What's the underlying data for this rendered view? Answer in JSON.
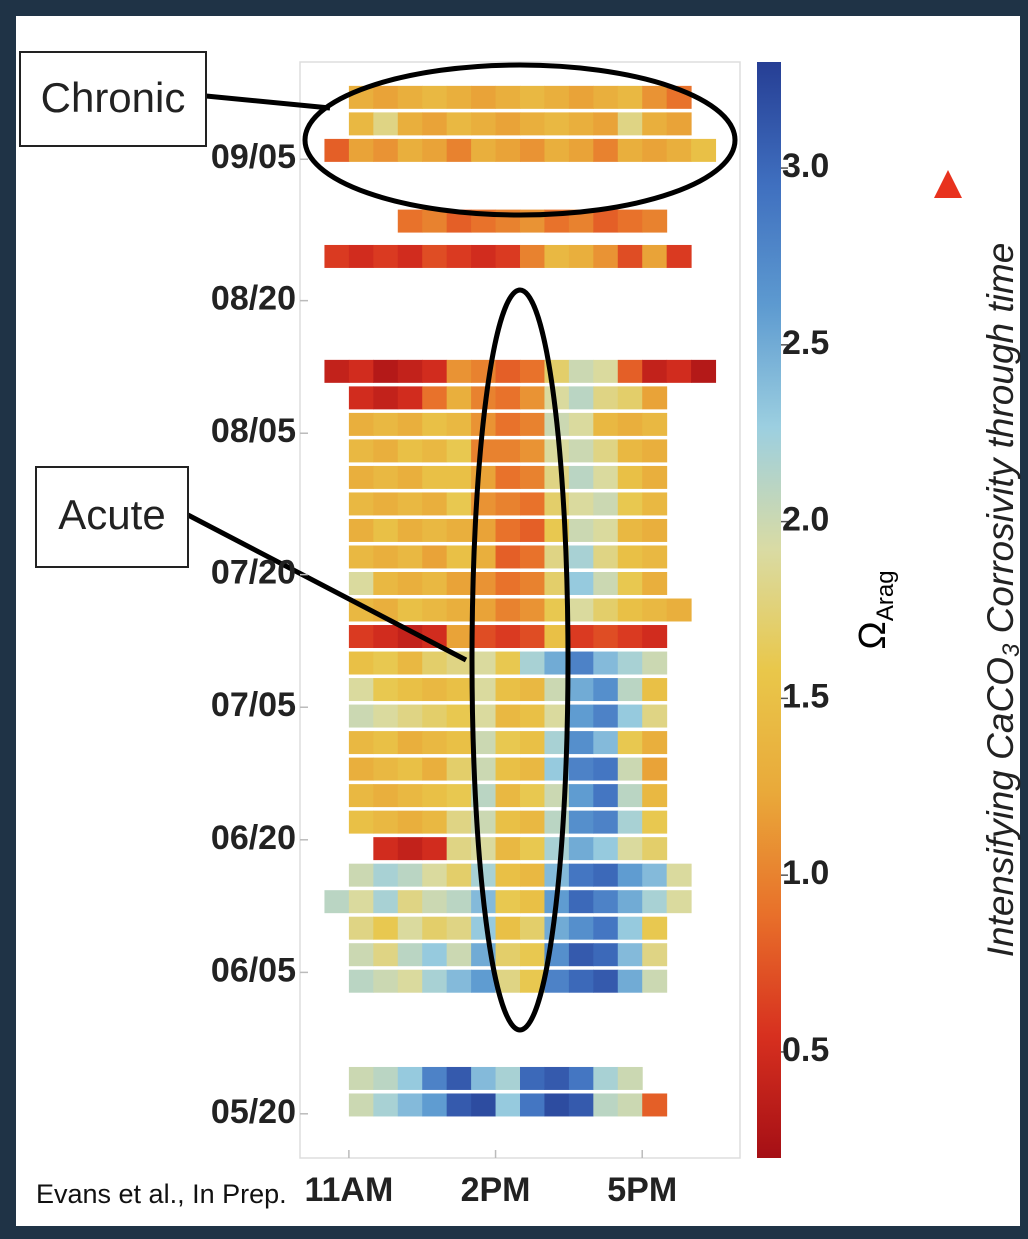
{
  "chart_data": {
    "type": "heatmap",
    "xticks": [
      {
        "value": 11,
        "label": "11AM"
      },
      {
        "value": 14,
        "label": "2PM"
      },
      {
        "value": 17,
        "label": "5PM"
      }
    ],
    "xlim": [
      10,
      19
    ],
    "yticks": [
      {
        "value": 140,
        "label": "05/20"
      },
      {
        "value": 156,
        "label": "06/05"
      },
      {
        "value": 171,
        "label": "06/20"
      },
      {
        "value": 186,
        "label": "07/05"
      },
      {
        "value": 201,
        "label": "07/20"
      },
      {
        "value": 217,
        "label": "08/05"
      },
      {
        "value": 232,
        "label": "08/20"
      },
      {
        "value": 248,
        "label": "09/05"
      }
    ],
    "ylim": [
      135,
      259
    ],
    "clim": [
      0.2,
      3.3
    ],
    "cticks": [
      0.5,
      {
        "value": 1.0,
        "label": "1.0"
      },
      1.5,
      {
        "value": 2.0,
        "label": "2.0"
      },
      2.5,
      {
        "value": 3.0,
        "label": "3.0"
      }
    ],
    "colormap": [
      "#a50f15",
      "#d7301f",
      "#e8702a",
      "#e9a93a",
      "#e9c74a",
      "#d9dba4",
      "#9ccfe0",
      "#5d9ad0",
      "#3f6fbf",
      "#263e94"
    ],
    "colorbar_label": "Ω",
    "colorbar_label_sub": "Arag",
    "side_label": [
      "Intensifying CaCO",
      "3",
      " Corrosivity through time"
    ],
    "annotations": [
      "Chronic",
      "Acute"
    ],
    "credit": "Evans et al., In Prep.",
    "x": [
      10.75,
      11.25,
      11.75,
      12.25,
      12.75,
      13.25,
      13.75,
      14.25,
      14.75,
      15.25,
      15.75,
      16.25,
      16.75,
      17.25,
      17.75,
      18.25
    ],
    "rows": [
      {
        "y": 255,
        "values": [
          null,
          1.3,
          1.2,
          1.3,
          1.4,
          1.3,
          1.2,
          1.3,
          1.4,
          1.3,
          1.2,
          1.3,
          1.4,
          1.1,
          0.9,
          null
        ]
      },
      {
        "y": 252,
        "values": [
          null,
          1.4,
          1.8,
          1.3,
          1.2,
          1.4,
          1.3,
          1.2,
          1.3,
          1.4,
          1.3,
          1.2,
          1.8,
          1.3,
          1.2,
          null
        ]
      },
      {
        "y": 249,
        "values": [
          0.8,
          1.2,
          1.1,
          1.3,
          1.2,
          1.0,
          1.3,
          1.2,
          1.1,
          1.3,
          1.2,
          1.0,
          1.3,
          1.2,
          1.3,
          1.5
        ]
      },
      {
        "y": 241,
        "values": [
          null,
          null,
          null,
          0.9,
          1.0,
          0.8,
          0.9,
          1.0,
          1.1,
          0.9,
          1.0,
          0.8,
          0.9,
          1.0,
          null,
          null
        ]
      },
      {
        "y": 237,
        "values": [
          0.6,
          0.5,
          0.6,
          0.5,
          0.7,
          0.6,
          0.5,
          0.6,
          1.0,
          1.4,
          1.3,
          1.1,
          0.7,
          1.2,
          0.6,
          null
        ]
      },
      {
        "y": 224,
        "values": [
          0.4,
          0.5,
          0.3,
          0.4,
          0.5,
          1.1,
          1.0,
          0.8,
          0.9,
          1.7,
          2.0,
          1.9,
          0.8,
          0.4,
          0.5,
          0.3
        ]
      },
      {
        "y": 221,
        "values": [
          null,
          0.5,
          0.4,
          0.5,
          0.9,
          1.3,
          1.0,
          0.9,
          1.1,
          1.9,
          2.1,
          1.8,
          1.7,
          1.2,
          null,
          null
        ]
      },
      {
        "y": 218,
        "values": [
          null,
          1.3,
          1.4,
          1.3,
          1.5,
          1.4,
          1.1,
          0.9,
          1.0,
          2.0,
          1.9,
          1.4,
          1.3,
          1.4,
          null,
          null
        ]
      },
      {
        "y": 215,
        "values": [
          null,
          1.4,
          1.3,
          1.5,
          1.4,
          1.6,
          1.0,
          1.0,
          1.1,
          1.9,
          2.0,
          1.8,
          1.4,
          1.3,
          null,
          null
        ]
      },
      {
        "y": 212,
        "values": [
          null,
          1.3,
          1.4,
          1.3,
          1.5,
          1.5,
          1.2,
          0.9,
          1.0,
          1.8,
          2.1,
          1.9,
          1.5,
          1.3,
          null,
          null
        ]
      },
      {
        "y": 209,
        "values": [
          null,
          1.4,
          1.3,
          1.4,
          1.3,
          1.6,
          1.1,
          1.0,
          0.9,
          1.7,
          1.9,
          2.0,
          1.6,
          1.4,
          null,
          null
        ]
      },
      {
        "y": 206,
        "values": [
          null,
          1.3,
          1.5,
          1.3,
          1.4,
          1.3,
          1.2,
          0.9,
          0.8,
          1.6,
          2.0,
          1.9,
          1.4,
          1.3,
          null,
          null
        ]
      },
      {
        "y": 203,
        "values": [
          null,
          1.4,
          1.3,
          1.4,
          1.2,
          1.5,
          1.3,
          0.8,
          0.9,
          1.8,
          2.2,
          1.8,
          1.5,
          1.4,
          null,
          null
        ]
      },
      {
        "y": 200,
        "values": [
          null,
          1.9,
          1.4,
          1.3,
          1.4,
          1.2,
          1.1,
          0.9,
          1.0,
          1.7,
          2.3,
          2.0,
          1.6,
          1.3,
          null,
          null
        ]
      },
      {
        "y": 197,
        "values": [
          null,
          1.4,
          1.3,
          1.5,
          1.4,
          1.3,
          1.2,
          1.0,
          1.1,
          1.6,
          1.9,
          1.7,
          1.5,
          1.4,
          1.3,
          null
        ]
      },
      {
        "y": 194,
        "values": [
          null,
          0.6,
          0.5,
          0.4,
          0.5,
          1.2,
          0.7,
          0.6,
          0.7,
          1.5,
          0.6,
          0.7,
          0.6,
          0.5,
          null,
          null
        ]
      },
      {
        "y": 191,
        "values": [
          null,
          1.5,
          1.6,
          1.4,
          1.7,
          1.8,
          1.9,
          1.6,
          2.2,
          2.5,
          2.8,
          2.4,
          2.2,
          2.0,
          null,
          null
        ]
      },
      {
        "y": 188,
        "values": [
          null,
          1.9,
          1.6,
          1.5,
          1.4,
          1.5,
          1.9,
          1.5,
          1.4,
          2.0,
          2.5,
          2.7,
          2.1,
          1.5,
          null,
          null
        ]
      },
      {
        "y": 185,
        "values": [
          null,
          2.0,
          1.9,
          1.8,
          1.7,
          1.6,
          1.9,
          1.4,
          1.5,
          1.9,
          2.6,
          2.8,
          2.3,
          1.8,
          null,
          null
        ]
      },
      {
        "y": 182,
        "values": [
          null,
          1.4,
          1.5,
          1.3,
          1.4,
          1.5,
          2.0,
          1.6,
          1.5,
          2.2,
          2.7,
          2.4,
          1.6,
          1.3,
          null,
          null
        ]
      },
      {
        "y": 179,
        "values": [
          null,
          1.3,
          1.4,
          1.5,
          1.3,
          1.7,
          2.0,
          1.5,
          1.4,
          2.3,
          2.8,
          2.9,
          2.0,
          1.2,
          null,
          null
        ]
      },
      {
        "y": 176,
        "values": [
          null,
          1.4,
          1.3,
          1.4,
          1.5,
          1.6,
          2.1,
          1.4,
          1.6,
          2.0,
          2.6,
          2.9,
          2.1,
          1.4,
          null,
          null
        ]
      },
      {
        "y": 173,
        "values": [
          null,
          1.5,
          1.4,
          1.3,
          1.4,
          1.8,
          2.0,
          1.5,
          1.4,
          2.1,
          2.7,
          2.8,
          2.2,
          1.6,
          null,
          null
        ]
      },
      {
        "y": 170,
        "values": [
          null,
          null,
          0.5,
          0.4,
          0.5,
          1.8,
          1.9,
          1.4,
          1.6,
          2.2,
          2.5,
          2.3,
          1.9,
          1.7,
          null,
          null
        ]
      },
      {
        "y": 167,
        "values": [
          null,
          2.0,
          2.2,
          2.1,
          1.9,
          1.7,
          2.2,
          1.5,
          1.4,
          2.4,
          2.9,
          3.0,
          2.6,
          2.4,
          1.9,
          null
        ]
      },
      {
        "y": 164,
        "values": [
          2.1,
          1.9,
          2.2,
          1.8,
          2.0,
          2.1,
          2.4,
          1.6,
          1.5,
          2.6,
          3.0,
          2.8,
          2.5,
          2.2,
          1.9,
          null
        ]
      },
      {
        "y": 161,
        "values": [
          null,
          1.8,
          1.6,
          1.9,
          1.7,
          1.8,
          2.3,
          1.5,
          1.7,
          2.5,
          2.7,
          2.9,
          2.3,
          1.6,
          null,
          null
        ]
      },
      {
        "y": 158,
        "values": [
          null,
          2.0,
          1.8,
          2.1,
          2.3,
          2.0,
          2.5,
          1.7,
          1.6,
          2.7,
          3.1,
          3.0,
          2.4,
          1.8,
          null,
          null
        ]
      },
      {
        "y": 155,
        "values": [
          null,
          2.1,
          2.0,
          1.9,
          2.2,
          2.4,
          2.6,
          1.8,
          1.6,
          2.8,
          3.0,
          3.1,
          2.5,
          2.0,
          null,
          null
        ]
      },
      {
        "y": 144,
        "values": [
          null,
          2.0,
          2.1,
          2.3,
          2.8,
          3.1,
          2.4,
          2.2,
          3.0,
          3.1,
          2.9,
          2.2,
          2.0,
          null,
          null,
          null
        ]
      },
      {
        "y": 141,
        "values": [
          null,
          2.0,
          2.2,
          2.4,
          2.6,
          3.1,
          3.2,
          2.3,
          2.9,
          3.2,
          3.1,
          2.1,
          2.0,
          0.8,
          null,
          null
        ]
      }
    ]
  }
}
